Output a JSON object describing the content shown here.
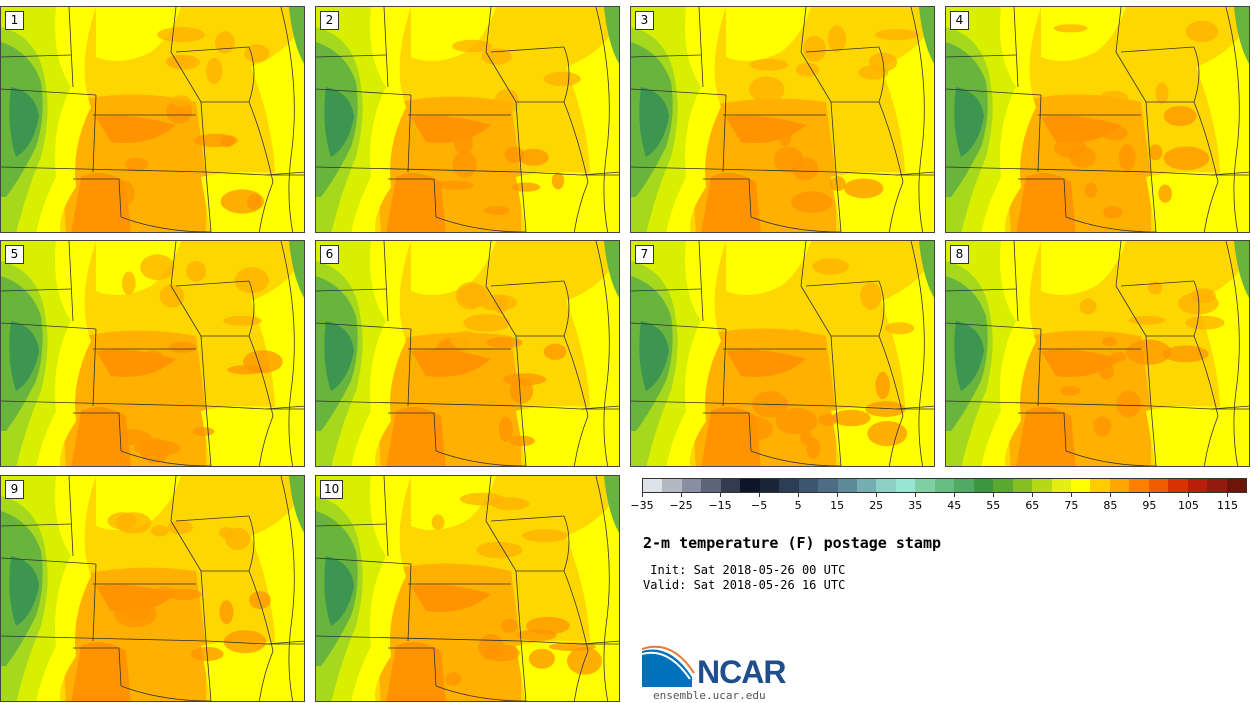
{
  "panels": [
    {
      "label": "1"
    },
    {
      "label": "2"
    },
    {
      "label": "3"
    },
    {
      "label": "4"
    },
    {
      "label": "5"
    },
    {
      "label": "6"
    },
    {
      "label": "7"
    },
    {
      "label": "8"
    },
    {
      "label": "9"
    },
    {
      "label": "10"
    }
  ],
  "colorbar": {
    "colors": [
      "#dfe3e8",
      "#b3b9c3",
      "#888fa0",
      "#5d6578",
      "#333b50",
      "#0c1529",
      "#1a2538",
      "#2b3e55",
      "#3d5670",
      "#4d6d85",
      "#5d8c98",
      "#74aeb1",
      "#8ccfc4",
      "#98e5d4",
      "#7fcfa3",
      "#68bd84",
      "#4fab63",
      "#3d9640",
      "#5aa82f",
      "#86bf22",
      "#b6d816",
      "#e4ee10",
      "#ffff00",
      "#ffcc00",
      "#ffa600",
      "#ff8000",
      "#f25c00",
      "#d83200",
      "#b81e08",
      "#941a0d",
      "#6e1509"
    ],
    "ticks": [
      "−35",
      "−25",
      "−15",
      "−5",
      "5",
      "15",
      "25",
      "35",
      "45",
      "55",
      "65",
      "75",
      "85",
      "95",
      "105",
      "115"
    ]
  },
  "title": "2-m temperature (F) postage stamp",
  "init": " Init: Sat 2018-05-26 00 UTC",
  "valid": "Valid: Sat 2018-05-26 16 UTC",
  "logo": {
    "name": "NCAR",
    "colors": {
      "blue": "#0072bc",
      "navy": "#1f4e8c",
      "red": "#e87b34"
    }
  },
  "website": "ensemble.ucar.edu",
  "map_colors": {
    "base": "#ffd700",
    "warm": "#ffb000",
    "hot": "#ff9400",
    "mild": "#ffff00",
    "cool": "#d8f000",
    "cooler": "#a6d81e",
    "cold": "#68b43c",
    "coldest": "#3c9650",
    "border": "#333333"
  }
}
